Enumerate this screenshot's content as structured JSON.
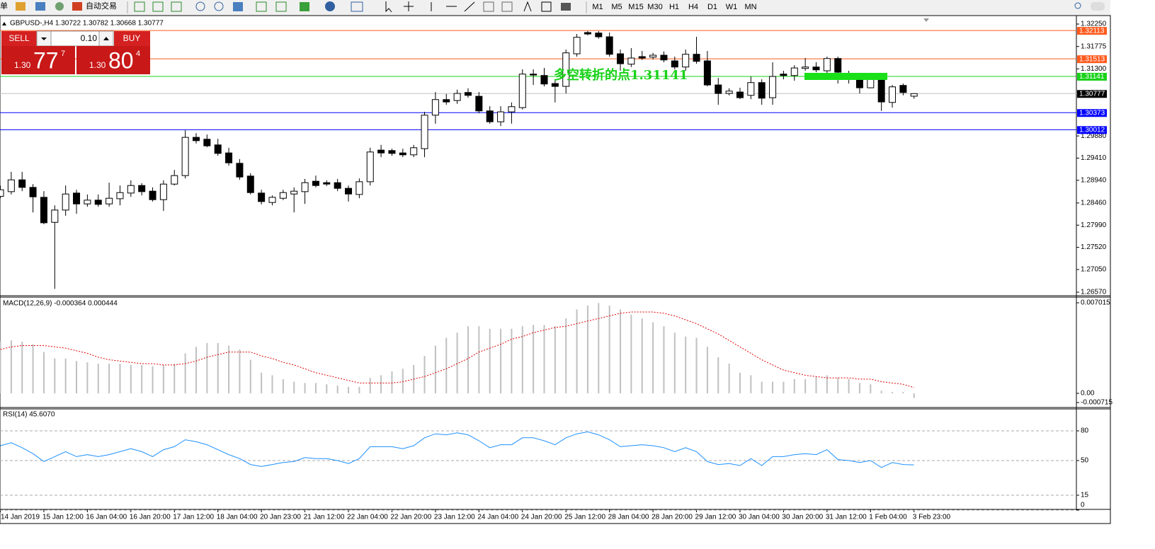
{
  "toolbar": {
    "items": [
      "单",
      "自动交易"
    ],
    "timeframes": [
      "M1",
      "M5",
      "M15",
      "M30",
      "H1",
      "H4",
      "D1",
      "W1",
      "MN"
    ]
  },
  "trade_panel": {
    "sell": "SELL",
    "lot": "0.10",
    "buy": "BUY",
    "bid_big": "1.30",
    "bid_main": "77",
    "bid_pip": "7",
    "ask_big": "1.30",
    "ask_main": "80",
    "ask_pip": "4"
  },
  "chart_data": [
    {
      "type": "candlestick",
      "title": "GBPUSD-,H4 1.30722 1.30782 1.30668 1.30777",
      "categories": [
        "14 Jan 2019",
        null,
        null,
        null,
        "15 Jan 12:00",
        null,
        null,
        null,
        "16 Jan 04:00",
        null,
        null,
        null,
        "16 Jan 20:00",
        null,
        null,
        null,
        "17 Jan 12:00",
        null,
        null,
        null,
        "18 Jan 04:00",
        null,
        null,
        null,
        "20 Jan 23:00",
        null,
        null,
        null,
        "21 Jan 12:00",
        null,
        null,
        null,
        "22 Jan 04:00",
        null,
        null,
        null,
        "22 Jan 20:00",
        null,
        null,
        null,
        "23 Jan 12:00",
        null,
        null,
        null,
        "24 Jan 04:00",
        null,
        null,
        null,
        "24 Jan 20:00",
        null,
        null,
        null,
        "25 Jan 12:00",
        null,
        null,
        null,
        "28 Jan 04:00",
        null,
        null,
        null,
        "28 Jan 20:00",
        null,
        null,
        null,
        "29 Jan 12:00",
        null,
        null,
        null,
        "30 Jan 04:00",
        null,
        null,
        null,
        "30 Jan 20:00",
        null,
        null,
        null,
        "31 Jan 12:00",
        null,
        null,
        null,
        "1 Feb 04:00",
        null,
        null,
        null,
        "3 Feb 23:00"
      ],
      "open": [
        1.286,
        1.287,
        1.2895,
        1.2879,
        1.2858,
        1.2805,
        1.2831,
        1.2867,
        1.2844,
        1.2852,
        1.2844,
        1.2855,
        1.2867,
        1.2883,
        1.2871,
        1.2853,
        1.2886,
        1.2904,
        1.2985,
        1.2981,
        1.2969,
        1.2952,
        1.293,
        1.2903,
        1.2867,
        1.2847,
        1.2856,
        1.2865,
        1.287,
        1.2892,
        1.2889,
        1.2889,
        1.2877,
        1.2864,
        1.2891,
        1.2958,
        1.2957,
        1.2952,
        1.2948,
        1.2961,
        1.3032,
        1.3065,
        1.3063,
        1.308,
        1.3072,
        1.3041,
        1.3018,
        1.3039,
        1.3048,
        1.3119,
        1.3116,
        1.3099,
        1.3093,
        1.3162,
        1.3207,
        1.3206,
        1.3198,
        1.3162,
        1.314,
        1.3156,
        1.3155,
        1.3159,
        1.3147,
        1.3134,
        1.3161,
        1.3147,
        1.3096,
        1.3078,
        1.3081,
        1.3074,
        1.3101,
        1.3069,
        1.3119,
        1.3116,
        1.3131,
        1.3134,
        1.3126,
        1.3152,
        1.3111,
        1.3108,
        1.309,
        1.3107,
        1.3059,
        1.3095,
        1.30722
      ],
      "high": [
        1.2883,
        1.2912,
        1.2912,
        1.2886,
        1.2871,
        1.2841,
        1.2883,
        1.2874,
        1.2864,
        1.2864,
        1.2889,
        1.2883,
        1.2894,
        1.2888,
        1.2879,
        1.2894,
        1.2916,
        1.3,
        1.2994,
        1.2991,
        1.2982,
        1.2963,
        1.2939,
        1.2909,
        1.2874,
        1.2862,
        1.2874,
        1.2879,
        1.2897,
        1.2904,
        1.2894,
        1.2897,
        1.2883,
        1.2898,
        1.2963,
        1.2969,
        1.2961,
        1.2961,
        1.2969,
        1.3039,
        1.3081,
        1.3077,
        1.3086,
        1.3089,
        1.3081,
        1.3051,
        1.3051,
        1.3059,
        1.3129,
        1.3129,
        1.3132,
        1.3108,
        1.3171,
        1.3204,
        1.321,
        1.321,
        1.3207,
        1.3171,
        1.3174,
        1.3168,
        1.3164,
        1.3167,
        1.3156,
        1.3171,
        1.3198,
        1.3168,
        1.3111,
        1.3089,
        1.309,
        1.3114,
        1.3108,
        1.3144,
        1.3126,
        1.3138,
        1.3153,
        1.3144,
        1.3156,
        1.3156,
        1.3126,
        1.3119,
        1.3111,
        1.3114,
        1.3096,
        1.3099,
        1.30782
      ],
      "low": [
        1.2856,
        1.2864,
        1.2871,
        1.2826,
        1.2801,
        1.2664,
        1.2819,
        1.2823,
        1.2838,
        1.2838,
        1.2838,
        1.2841,
        1.2859,
        1.2862,
        1.2849,
        1.2829,
        1.2883,
        1.2898,
        1.2972,
        1.2964,
        1.2946,
        1.2925,
        1.2895,
        1.2864,
        1.2843,
        1.2841,
        1.2852,
        1.2826,
        1.2844,
        1.2879,
        1.2882,
        1.2871,
        1.2849,
        1.2856,
        1.2883,
        1.2943,
        1.2946,
        1.2943,
        1.2943,
        1.2943,
        1.3014,
        1.3054,
        1.3056,
        1.3069,
        1.3036,
        1.3014,
        1.3009,
        1.3014,
        1.3044,
        1.3096,
        1.3093,
        1.3059,
        1.3078,
        1.3156,
        1.3201,
        1.3194,
        1.3156,
        1.3126,
        1.3134,
        1.3149,
        1.315,
        1.3144,
        1.3129,
        1.3126,
        1.3141,
        1.3093,
        1.3054,
        1.3074,
        1.3066,
        1.3066,
        1.3054,
        1.3054,
        1.3108,
        1.3105,
        1.3126,
        1.3123,
        1.3114,
        1.3099,
        1.3099,
        1.3078,
        1.3089,
        1.3041,
        1.3048,
        1.3074,
        1.30668
      ],
      "close": [
        1.2874,
        1.2895,
        1.2879,
        1.2859,
        1.2804,
        1.2831,
        1.2865,
        1.2844,
        1.2852,
        1.2843,
        1.2856,
        1.2868,
        1.2883,
        1.287,
        1.2853,
        1.2886,
        1.2904,
        1.2985,
        1.2978,
        1.2967,
        1.2951,
        1.2931,
        1.2901,
        1.2868,
        1.2849,
        1.2858,
        1.2868,
        1.2871,
        1.2889,
        1.2883,
        1.2886,
        1.2877,
        1.2865,
        1.2891,
        1.2954,
        1.2952,
        1.2951,
        1.2948,
        1.2963,
        1.3032,
        1.3065,
        1.306,
        1.3078,
        1.3074,
        1.3041,
        1.3018,
        1.3039,
        1.305,
        1.3119,
        1.3117,
        1.3098,
        1.3093,
        1.3164,
        1.3197,
        1.3204,
        1.3198,
        1.3161,
        1.3141,
        1.3153,
        1.3153,
        1.3159,
        1.3149,
        1.3134,
        1.3161,
        1.3146,
        1.3096,
        1.3078,
        1.3083,
        1.3069,
        1.3101,
        1.3068,
        1.3114,
        1.3116,
        1.3132,
        1.3134,
        1.3128,
        1.3152,
        1.3123,
        1.3108,
        1.309,
        1.3108,
        1.306,
        1.3092,
        1.308,
        1.30777
      ],
      "up_color": "#ffffff",
      "down_color": "#000000",
      "ylim": [
        1.2651,
        1.3231
      ],
      "yticks": [
        {
          "value": 1.3225,
          "label": "1.32250"
        },
        1.31775,
        {
          "value": 1.313,
          "label": "1.31300"
        },
        {
          "value": 1.2988,
          "label": "1.29880"
        },
        {
          "value": 1.2941,
          "label": "1.29410"
        },
        {
          "value": 1.2894,
          "label": "1.28940"
        },
        {
          "value": 1.2846,
          "label": "1.28460"
        },
        {
          "value": 1.2799,
          "label": "1.27990"
        },
        {
          "value": 1.2752,
          "label": "1.27520"
        },
        {
          "value": 1.2705,
          "label": "1.27050"
        },
        {
          "value": 1.2657,
          "label": "1.26570"
        }
      ],
      "levels": [
        {
          "value": 1.32113,
          "color": "#ff5a1e"
        },
        {
          "value": 1.31513,
          "color": "#ff5a1e"
        },
        {
          "value": 1.31141,
          "color": "#19d219"
        },
        {
          "value": 1.30373,
          "color": "#0000ff"
        },
        {
          "value": 1.30012,
          "color": "#0000ff"
        }
      ],
      "annotation": "多空转折的点1.31141"
    },
    {
      "type": "macd",
      "title": "MACD(12,26,9) -0.000364 0.000444",
      "histogram": [
        0.004,
        0.0041,
        0.004,
        0.0038,
        0.0032,
        0.0027,
        0.0027,
        0.0025,
        0.0024,
        0.0023,
        0.0023,
        0.0023,
        0.0022,
        0.0022,
        0.0021,
        0.0022,
        0.0023,
        0.0031,
        0.0036,
        0.0039,
        0.0039,
        0.0037,
        0.0034,
        0.0026,
        0.0016,
        0.0014,
        0.0011,
        0.0009,
        0.0008,
        0.0008,
        0.0007,
        0.0006,
        0.0005,
        0.0005,
        0.0012,
        0.0014,
        0.0017,
        0.0019,
        0.0022,
        0.0029,
        0.0037,
        0.0043,
        0.0047,
        0.0052,
        0.0052,
        0.005,
        0.005,
        0.005,
        0.0052,
        0.0053,
        0.0053,
        0.0052,
        0.0058,
        0.0065,
        0.0068,
        0.007,
        0.0068,
        0.0065,
        0.0061,
        0.0058,
        0.0055,
        0.0052,
        0.0047,
        0.0044,
        0.0043,
        0.0036,
        0.0028,
        0.0023,
        0.0016,
        0.0014,
        0.0009,
        0.0009,
        0.0009,
        0.0011,
        0.0011,
        0.0013,
        0.0014,
        0.0012,
        0.0011,
        0.0008,
        0.0007,
        0.0002,
        0.0001,
        0.0001,
        -0.000364
      ],
      "signal": [
        0.0034,
        0.0036,
        0.0037,
        0.0037,
        0.0037,
        0.0036,
        0.0035,
        0.0033,
        0.0031,
        0.0028,
        0.0026,
        0.0025,
        0.0024,
        0.0023,
        0.0023,
        0.0022,
        0.0022,
        0.0023,
        0.0025,
        0.0028,
        0.003,
        0.0032,
        0.0032,
        0.0032,
        0.0029,
        0.0027,
        0.0024,
        0.0022,
        0.0019,
        0.0016,
        0.0014,
        0.0012,
        0.001,
        0.0008,
        0.0008,
        0.0008,
        0.0008,
        0.0009,
        0.0011,
        0.0013,
        0.0016,
        0.0019,
        0.0023,
        0.0027,
        0.0032,
        0.0035,
        0.0038,
        0.0042,
        0.0044,
        0.0047,
        0.0049,
        0.0051,
        0.0052,
        0.0054,
        0.0056,
        0.0058,
        0.006,
        0.0062,
        0.0063,
        0.0063,
        0.0063,
        0.0062,
        0.006,
        0.0057,
        0.0054,
        0.005,
        0.0046,
        0.0041,
        0.0036,
        0.0031,
        0.0026,
        0.0022,
        0.0018,
        0.0016,
        0.0014,
        0.0013,
        0.0012,
        0.0012,
        0.0012,
        0.0011,
        0.0011,
        0.0009,
        0.0008,
        0.0007,
        0.000444
      ],
      "histogram_color": "#c0c0c0",
      "signal_color": "#e00000",
      "ylim": [
        -0.000715,
        0.007015
      ],
      "yticks": [
        0.007015,
        {
          "value": 0,
          "label": "0.00"
        },
        -0.000715
      ]
    },
    {
      "type": "line",
      "title": "RSI(14) 45.6070",
      "values": [
        65,
        68,
        63,
        57,
        49,
        54,
        59,
        54,
        56,
        54,
        56,
        59,
        62,
        59,
        54,
        61,
        64,
        71,
        69,
        66,
        61,
        56,
        52,
        46,
        44,
        46,
        48,
        49,
        53,
        52,
        52,
        50,
        47,
        52,
        64,
        64,
        64,
        62,
        65,
        73,
        77,
        76,
        78,
        76,
        70,
        63,
        66,
        66,
        73,
        73,
        70,
        66,
        73,
        77,
        79,
        76,
        71,
        64,
        65,
        66,
        65,
        63,
        59,
        63,
        59,
        49,
        46,
        47,
        45,
        52,
        45,
        54,
        54,
        56,
        57,
        56,
        61,
        51,
        50,
        48,
        50,
        43,
        48,
        46,
        45.607
      ],
      "color": "#1e90ff",
      "ylim": [
        0,
        100
      ],
      "yticks": [
        80,
        50,
        15,
        0
      ],
      "grid": true
    }
  ]
}
